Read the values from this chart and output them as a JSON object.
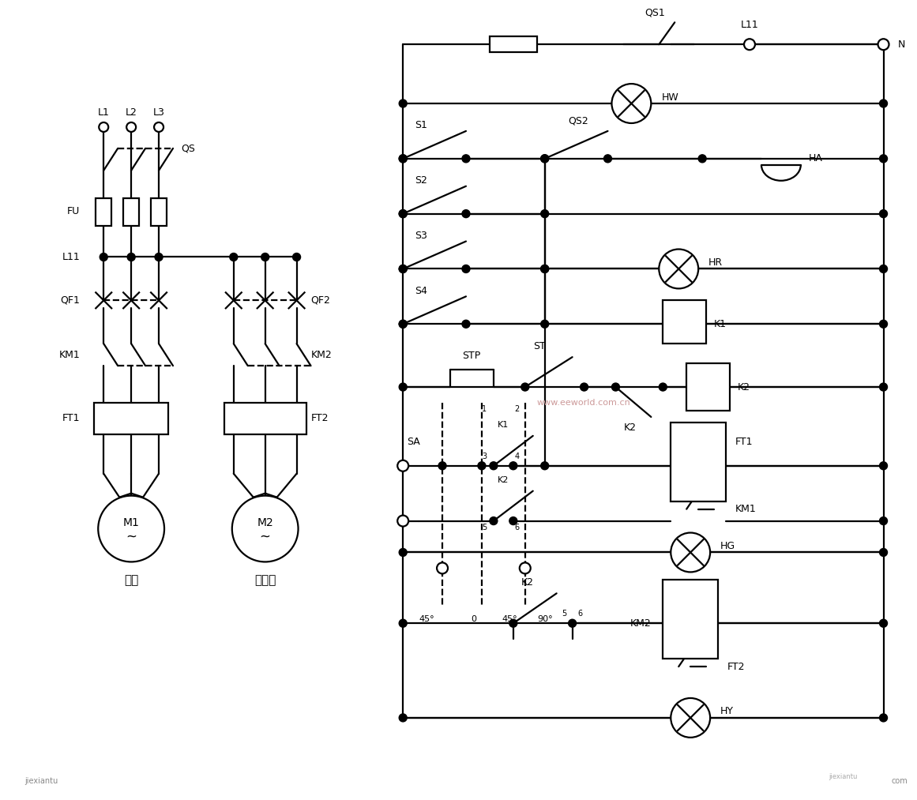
{
  "bg_color": "#ffffff",
  "line_color": "#000000",
  "line_width": 1.6,
  "fig_width": 11.61,
  "fig_height": 10.13,
  "watermark_text": "www.eeworld.com.cn",
  "watermark_color": "#cc9999",
  "footer_left": "jiexiantu",
  "footer_right": "jiexiantu·com"
}
